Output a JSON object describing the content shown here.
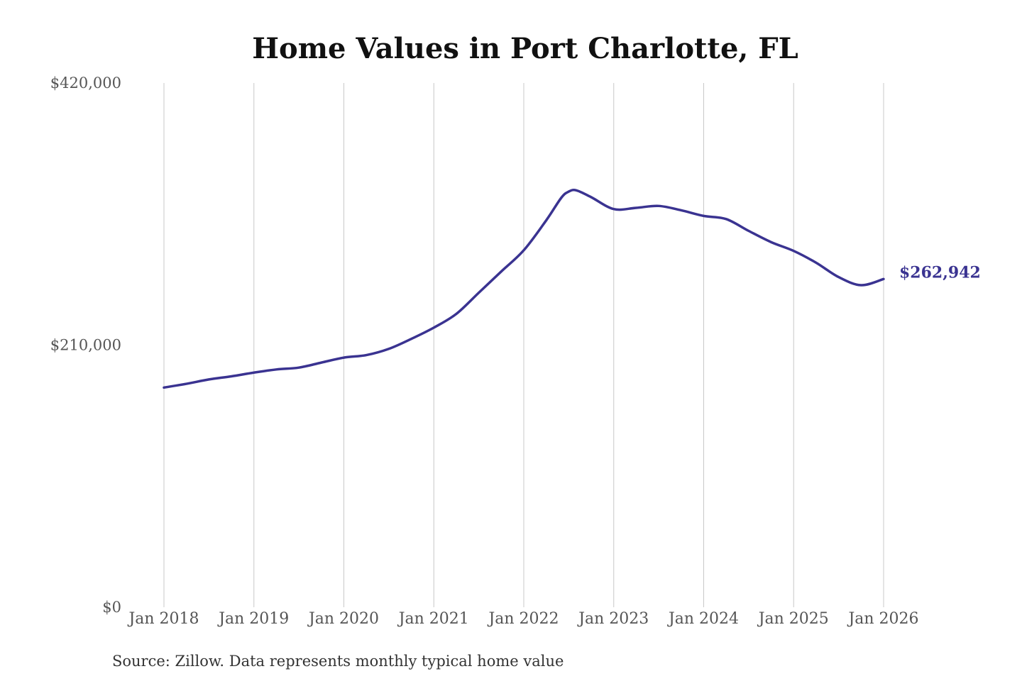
{
  "source_note": "Source: Zillow. Data represents monthly typical home value",
  "colors": {
    "line": "#3a3391",
    "grid": "#c8c8c8",
    "title": "#111111",
    "tick_text": "#555555"
  },
  "chart_data": {
    "type": "line",
    "title": "Home Values in Port Charlotte, FL",
    "xlabel": "",
    "ylabel": "",
    "ylim": [
      0,
      420000
    ],
    "xlim": [
      "2018-01",
      "2026-01"
    ],
    "grid": {
      "x": true,
      "y": false
    },
    "legend": "none",
    "y_ticks": [
      {
        "value": 420000,
        "label": "$420,000"
      },
      {
        "value": 210000,
        "label": "$210,000"
      },
      {
        "value": 0,
        "label": "$0"
      }
    ],
    "x_ticks": [
      {
        "value": "2018-01",
        "label": "Jan 2018"
      },
      {
        "value": "2019-01",
        "label": "Jan 2019"
      },
      {
        "value": "2020-01",
        "label": "Jan 2020"
      },
      {
        "value": "2021-01",
        "label": "Jan 2021"
      },
      {
        "value": "2022-01",
        "label": "Jan 2022"
      },
      {
        "value": "2023-01",
        "label": "Jan 2023"
      },
      {
        "value": "2024-01",
        "label": "Jan 2024"
      },
      {
        "value": "2025-01",
        "label": "Jan 2025"
      },
      {
        "value": "2026-01",
        "label": "Jan 2026"
      }
    ],
    "series": [
      {
        "x": [
          "2018-01",
          "2018-04",
          "2018-07",
          "2018-10",
          "2019-01",
          "2019-04",
          "2019-07",
          "2019-10",
          "2020-01",
          "2020-04",
          "2020-07",
          "2020-10",
          "2021-01",
          "2021-04",
          "2021-07",
          "2021-10",
          "2022-01",
          "2022-04",
          "2022-06",
          "2022-07",
          "2022-08",
          "2022-10",
          "2023-01",
          "2023-04",
          "2023-07",
          "2023-10",
          "2024-01",
          "2024-04",
          "2024-07",
          "2024-10",
          "2025-01",
          "2025-04",
          "2025-07",
          "2025-10",
          "2026-01"
        ],
        "values": [
          176000,
          179000,
          182500,
          185000,
          188000,
          190500,
          192000,
          196000,
          200000,
          202000,
          207000,
          215000,
          224000,
          235000,
          252000,
          269000,
          286000,
          310000,
          328000,
          333000,
          334000,
          328500,
          319000,
          320000,
          321500,
          318000,
          313500,
          311000,
          301500,
          292500,
          285500,
          276000,
          264500,
          258000,
          262942
        ],
        "end_label": "$262,942"
      }
    ]
  }
}
